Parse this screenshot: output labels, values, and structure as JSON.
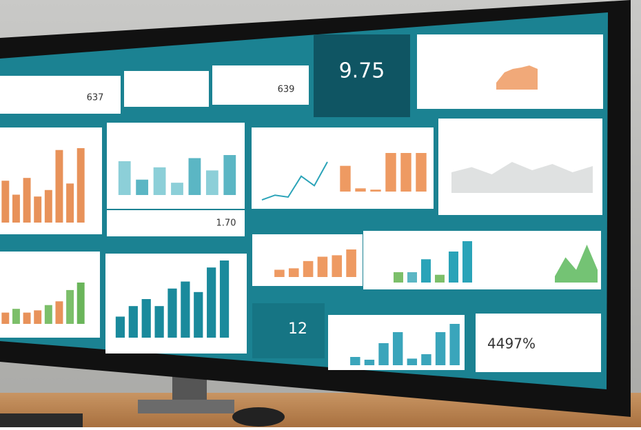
{
  "kpis": [
    "9.75",
    "637",
    "639",
    "12",
    "1.70",
    "4497%"
  ],
  "charts": [
    {
      "type": "bar",
      "colors": [
        "#e8925a",
        "#e8925a",
        "#e8925a",
        "#e8925a",
        "#e8925a",
        "#e8925a",
        "#e8925a",
        "#e8925a"
      ],
      "values": [
        45,
        30,
        48,
        28,
        35,
        78,
        42,
        80
      ]
    },
    {
      "type": "bar",
      "colors": [
        "#8ccfd8",
        "#5bb6c4",
        "#8ccfd8",
        "#8ccfd8",
        "#5bb6c4",
        "#8ccfd8",
        "#5bb6c4"
      ],
      "values": [
        55,
        25,
        45,
        20,
        60,
        40,
        65
      ]
    },
    {
      "type": "line",
      "color": "#2aa3b8",
      "values": [
        5,
        10,
        8,
        30,
        20,
        45
      ]
    },
    {
      "type": "bar",
      "colors": [
        "#ee9a62",
        "#ee9a62",
        "#ee9a62",
        "#ee9a62",
        "#ee9a62",
        "#ee9a62"
      ],
      "values": [
        40,
        5,
        3,
        60,
        60,
        60
      ]
    },
    {
      "type": "area",
      "color": "#d9dcdc",
      "values": [
        20,
        25,
        18,
        30,
        22,
        28,
        20,
        26
      ]
    },
    {
      "type": "bar",
      "colors": [
        "#e8925a",
        "#7cbf6a",
        "#e8925a",
        "#e8925a",
        "#7cbf6a",
        "#e8925a",
        "#7cbf6a",
        "#6ab55a"
      ],
      "values": [
        15,
        20,
        15,
        18,
        25,
        30,
        45,
        55
      ]
    },
    {
      "type": "bar",
      "colors": [
        "#1a8a9c",
        "#1a8a9c",
        "#1a8a9c",
        "#1a8a9c",
        "#1a8a9c",
        "#1a8a9c",
        "#1a8a9c",
        "#1a8a9c",
        "#1a8a9c"
      ],
      "values": [
        30,
        45,
        55,
        45,
        70,
        80,
        65,
        100,
        110
      ]
    },
    {
      "type": "bar",
      "colors": [
        "#ee9a62",
        "#ee9a62",
        "#ee9a62",
        "#ee9a62",
        "#ee9a62",
        "#ee9a62"
      ],
      "values": [
        10,
        12,
        22,
        28,
        30,
        38
      ]
    },
    {
      "type": "bar",
      "colors": [
        "#7cbf6a",
        "#5bb6c4",
        "#2aa3b8",
        "#7cbf6a",
        "#2aa3b8",
        "#2aa3b8"
      ],
      "values": [
        20,
        20,
        45,
        15,
        60,
        80
      ]
    },
    {
      "type": "area",
      "color": "#5cb85c",
      "values": [
        10,
        40,
        20,
        60,
        20
      ]
    },
    {
      "type": "bar",
      "colors": [
        "#3aa5bb",
        "#3aa5bb",
        "#3aa5bb",
        "#3aa5bb",
        "#3aa5bb",
        "#3aa5bb",
        "#3aa5bb",
        "#3aa5bb"
      ],
      "values": [
        15,
        10,
        40,
        60,
        12,
        20,
        60,
        75
      ]
    },
    {
      "type": "area",
      "color": "#ee9a62",
      "values": [
        10,
        25,
        30,
        32,
        35,
        30
      ]
    }
  ]
}
